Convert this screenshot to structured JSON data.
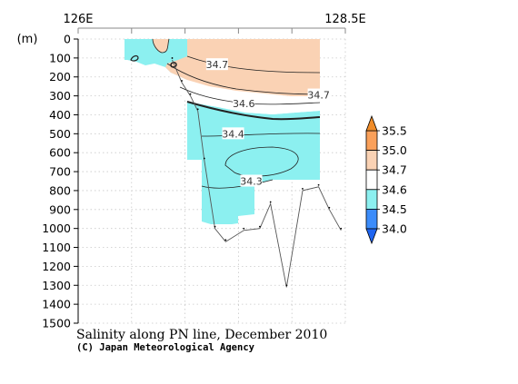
{
  "chart_data": {
    "type": "contour-section",
    "title": "Salinity along PN line, December 2010",
    "credit": "(C) Japan Meteorological Agency",
    "x_top_labels": [
      {
        "lon": 126.0,
        "label": "126E"
      },
      {
        "lon": 128.5,
        "label": "128.5E"
      }
    ],
    "xlim": [
      126.0,
      128.5
    ],
    "ylabel": "(m)",
    "ylim": [
      0,
      1500
    ],
    "yticks": [
      0,
      100,
      200,
      300,
      400,
      500,
      600,
      700,
      800,
      900,
      1000,
      1100,
      1200,
      1300,
      1400,
      1500
    ],
    "grid": true,
    "levels": [
      34.0,
      34.5,
      34.6,
      34.7,
      35.0,
      35.5
    ],
    "level_labels": [
      "34.0",
      "34.5",
      "34.6",
      "34.7",
      "35.0",
      "35.5"
    ],
    "bands": [
      {
        "from": 34.0,
        "to": 34.5,
        "color": "#3c8cfa"
      },
      {
        "from": 34.5,
        "to": 34.6,
        "color": "#8cf0f0"
      },
      {
        "from": 34.6,
        "to": 34.7,
        "color": "#ffffff"
      },
      {
        "from": 34.7,
        "to": 35.0,
        "color": "#fad2b4"
      },
      {
        "from": 35.0,
        "to": 35.5,
        "color": "#faa05a"
      }
    ],
    "contour_labels": [
      {
        "value": "34.7",
        "lon": 127.3,
        "depth": 135
      },
      {
        "value": "34.7",
        "lon": 128.25,
        "depth": 295
      },
      {
        "value": "34.6",
        "lon": 127.55,
        "depth": 340
      },
      {
        "value": "34.4",
        "lon": 127.45,
        "depth": 500
      },
      {
        "value": "34.3",
        "lon": 127.62,
        "depth": 750
      }
    ],
    "bottom_profile": [
      {
        "lon": 126.88,
        "depth": 110
      },
      {
        "lon": 126.97,
        "depth": 230
      },
      {
        "lon": 127.05,
        "depth": 300
      },
      {
        "lon": 127.12,
        "depth": 380
      },
      {
        "lon": 127.18,
        "depth": 640
      },
      {
        "lon": 127.28,
        "depth": 1000
      },
      {
        "lon": 127.38,
        "depth": 1070
      },
      {
        "lon": 127.55,
        "depth": 1010
      },
      {
        "lon": 127.7,
        "depth": 1000
      },
      {
        "lon": 127.8,
        "depth": 870
      },
      {
        "lon": 127.95,
        "depth": 1310
      },
      {
        "lon": 128.1,
        "depth": 800
      },
      {
        "lon": 128.25,
        "depth": 780
      },
      {
        "lon": 128.35,
        "depth": 900
      },
      {
        "lon": 128.46,
        "depth": 1010
      }
    ]
  }
}
